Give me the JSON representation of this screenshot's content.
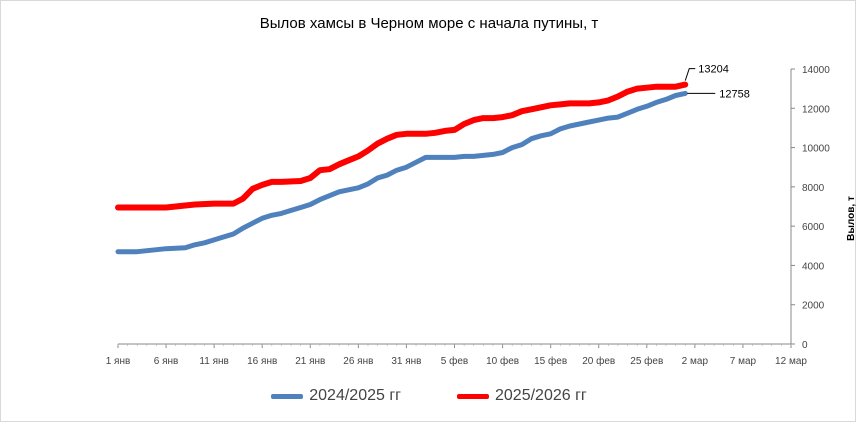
{
  "chart_data": {
    "type": "line",
    "title": "Вылов хамсы в Черном море с начала путины, т",
    "ylabel": "Вылов, т",
    "xlabel": "",
    "ylim": [
      0,
      14000
    ],
    "y_ticks": [
      0,
      2000,
      4000,
      6000,
      8000,
      10000,
      12000,
      14000
    ],
    "x_tick_labels": [
      "1 янв",
      "6 янв",
      "11 янв",
      "16 янв",
      "21 янв",
      "26 янв",
      "31 янв",
      "5 фев",
      "10 фев",
      "15 фев",
      "20 фев",
      "25 фев",
      "2 мар",
      "7 мар",
      "12 мар"
    ],
    "x_day_range": [
      1,
      71
    ],
    "grid": false,
    "legend_position": "bottom",
    "series": [
      {
        "name": "2024/2025 гг",
        "color": "#4f81bd",
        "end_label": "12758",
        "points": [
          [
            1,
            4700
          ],
          [
            3,
            4700
          ],
          [
            4,
            4750
          ],
          [
            6,
            4850
          ],
          [
            8,
            4900
          ],
          [
            9,
            5050
          ],
          [
            10,
            5150
          ],
          [
            11,
            5300
          ],
          [
            12,
            5450
          ],
          [
            13,
            5600
          ],
          [
            14,
            5900
          ],
          [
            15,
            6150
          ],
          [
            16,
            6400
          ],
          [
            17,
            6550
          ],
          [
            18,
            6650
          ],
          [
            19,
            6800
          ],
          [
            20,
            6950
          ],
          [
            21,
            7100
          ],
          [
            22,
            7350
          ],
          [
            23,
            7550
          ],
          [
            24,
            7750
          ],
          [
            25,
            7850
          ],
          [
            26,
            7950
          ],
          [
            27,
            8150
          ],
          [
            28,
            8450
          ],
          [
            29,
            8600
          ],
          [
            30,
            8850
          ],
          [
            31,
            9000
          ],
          [
            32,
            9250
          ],
          [
            33,
            9500
          ],
          [
            34,
            9500
          ],
          [
            35,
            9500
          ],
          [
            36,
            9500
          ],
          [
            37,
            9550
          ],
          [
            38,
            9550
          ],
          [
            39,
            9600
          ],
          [
            40,
            9650
          ],
          [
            41,
            9750
          ],
          [
            42,
            10000
          ],
          [
            43,
            10150
          ],
          [
            44,
            10450
          ],
          [
            45,
            10600
          ],
          [
            46,
            10700
          ],
          [
            47,
            10950
          ],
          [
            48,
            11100
          ],
          [
            49,
            11200
          ],
          [
            50,
            11300
          ],
          [
            51,
            11400
          ],
          [
            52,
            11500
          ],
          [
            53,
            11550
          ],
          [
            54,
            11750
          ],
          [
            55,
            11950
          ],
          [
            56,
            12100
          ],
          [
            57,
            12300
          ],
          [
            58,
            12450
          ],
          [
            59,
            12650
          ],
          [
            60,
            12758
          ]
        ]
      },
      {
        "name": "2025/2026 гг",
        "color": "#ff0000",
        "end_label": "13204",
        "points": [
          [
            1,
            6950
          ],
          [
            6,
            6950
          ],
          [
            8,
            7050
          ],
          [
            9,
            7100
          ],
          [
            11,
            7150
          ],
          [
            13,
            7150
          ],
          [
            14,
            7400
          ],
          [
            15,
            7900
          ],
          [
            16,
            8100
          ],
          [
            17,
            8250
          ],
          [
            18,
            8250
          ],
          [
            20,
            8300
          ],
          [
            21,
            8450
          ],
          [
            22,
            8850
          ],
          [
            23,
            8900
          ],
          [
            24,
            9150
          ],
          [
            25,
            9350
          ],
          [
            26,
            9550
          ],
          [
            27,
            9850
          ],
          [
            28,
            10200
          ],
          [
            29,
            10450
          ],
          [
            30,
            10650
          ],
          [
            31,
            10700
          ],
          [
            33,
            10700
          ],
          [
            34,
            10750
          ],
          [
            35,
            10850
          ],
          [
            36,
            10900
          ],
          [
            37,
            11200
          ],
          [
            38,
            11400
          ],
          [
            39,
            11500
          ],
          [
            40,
            11500
          ],
          [
            41,
            11550
          ],
          [
            42,
            11650
          ],
          [
            43,
            11850
          ],
          [
            44,
            11950
          ],
          [
            45,
            12050
          ],
          [
            46,
            12150
          ],
          [
            47,
            12200
          ],
          [
            48,
            12250
          ],
          [
            49,
            12250
          ],
          [
            50,
            12250
          ],
          [
            51,
            12300
          ],
          [
            52,
            12400
          ],
          [
            53,
            12600
          ],
          [
            54,
            12850
          ],
          [
            55,
            13000
          ],
          [
            56,
            13050
          ],
          [
            57,
            13100
          ],
          [
            58,
            13100
          ],
          [
            59,
            13100
          ],
          [
            60,
            13204
          ]
        ]
      }
    ]
  }
}
